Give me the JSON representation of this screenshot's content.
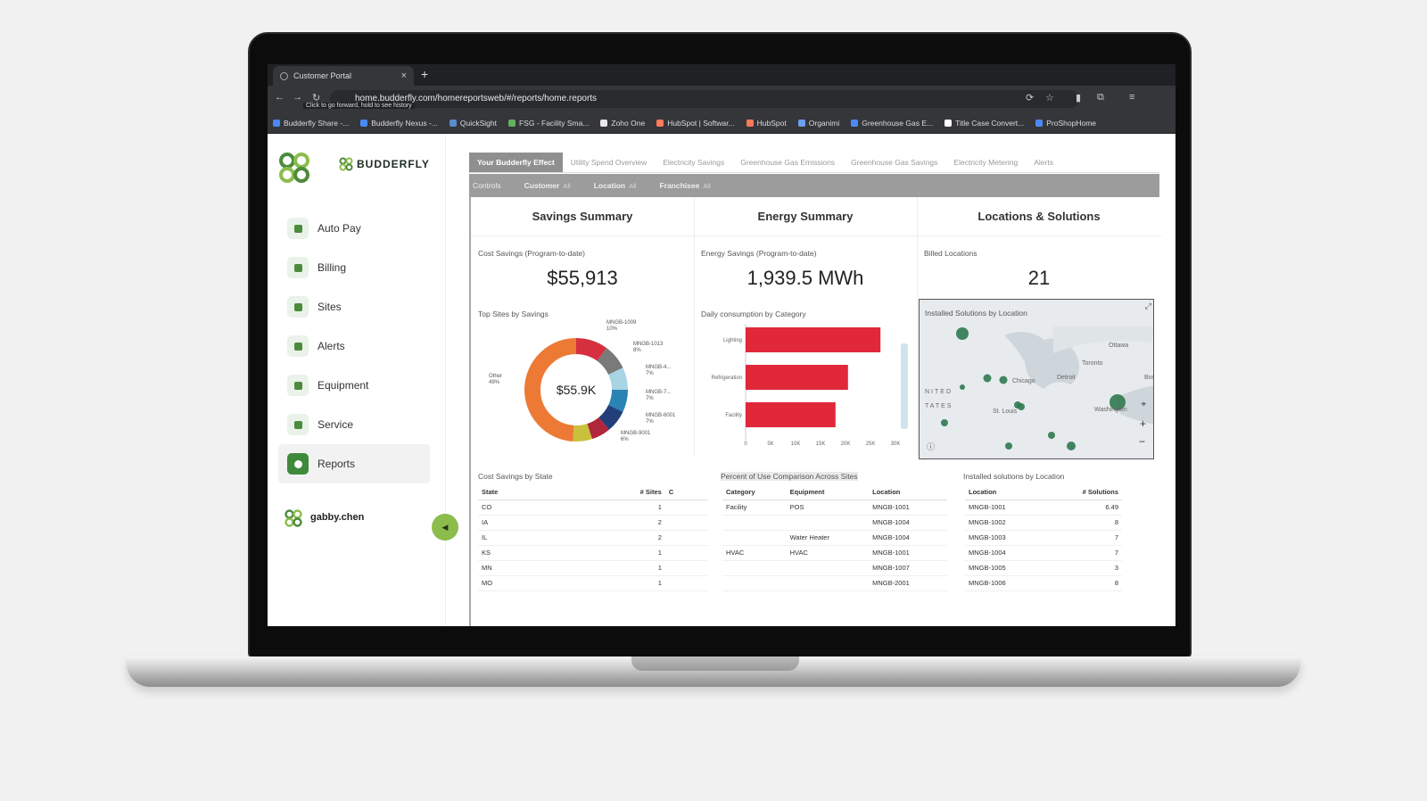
{
  "browser": {
    "tab_title": "Customer Portal",
    "url": "home.budderfly.com/homereportsweb/#/reports/home.reports",
    "url_tooltip": "Click to go forward, hold to see history",
    "bookmarks": [
      "Budderfly Share -...",
      "Budderfly Nexus -...",
      "QuickSight",
      "FSG - Facility Sma...",
      "Zoho One",
      "HubSpot | Softwar...",
      "HubSpot",
      "Organimi",
      "Greenhouse Gas E...",
      "Title Case Convert...",
      "ProShopHome"
    ]
  },
  "brand": {
    "name": "BUDDERFLY",
    "accent": "#3f8a3a"
  },
  "sidebar": {
    "items": [
      {
        "label": "Auto Pay",
        "icon": "card-icon"
      },
      {
        "label": "Billing",
        "icon": "receipt-icon"
      },
      {
        "label": "Sites",
        "icon": "pin-icon"
      },
      {
        "label": "Alerts",
        "icon": "bell-icon"
      },
      {
        "label": "Equipment",
        "icon": "gear-icon"
      },
      {
        "label": "Service",
        "icon": "tools-icon"
      },
      {
        "label": "Reports",
        "icon": "chart-icon",
        "active": true
      }
    ],
    "user": "gabby.chen"
  },
  "report_tabs": [
    "Your Budderfly Effect",
    "Utility Spend Overview",
    "Electricity Savings",
    "Greenhouse Gas Emissions",
    "Greenhouse Gas Savings",
    "Electricity Metering",
    "Alerts"
  ],
  "controls": {
    "label": "Controls",
    "filters": [
      {
        "name": "Customer",
        "value": "All"
      },
      {
        "name": "Location",
        "value": "All"
      },
      {
        "name": "Franchisee",
        "value": "All"
      }
    ]
  },
  "summary": {
    "savings": {
      "heading": "Savings Summary",
      "label": "Cost Savings (Program-to-date)",
      "value": "$55,913"
    },
    "energy": {
      "heading": "Energy Summary",
      "label": "Energy Savings (Program-to-date)",
      "value": "1,939.5 MWh"
    },
    "locations": {
      "heading": "Locations & Solutions",
      "label": "Billed Locations",
      "value": "21"
    }
  },
  "chart_data": [
    {
      "type": "pie",
      "title": "Top Sites by Savings",
      "center_label": "$55.9K",
      "slices": [
        {
          "label": "MNGB-1009",
          "pct_label": "10%",
          "value": 10,
          "color": "#d62f3f"
        },
        {
          "label": "MNGB-1013",
          "pct_label": "8%",
          "value": 8,
          "color": "#7a7a7a"
        },
        {
          "label": "MNGB-4...",
          "pct_label": "7%",
          "value": 7,
          "color": "#a9d4e4"
        },
        {
          "label": "MNGB-7...",
          "pct_label": "7%",
          "value": 7,
          "color": "#2b83b5"
        },
        {
          "label": "MNGB-6001",
          "pct_label": "7%",
          "value": 7,
          "color": "#223f7a"
        },
        {
          "label": "MNGB-9001",
          "pct_label": "6%",
          "value": 6,
          "color": "#b0263a"
        },
        {
          "label": "",
          "pct_label": "",
          "value": 6,
          "color": "#c9c13a"
        },
        {
          "label": "Other",
          "pct_label": "49%",
          "value": 49,
          "color": "#ec7a35"
        }
      ]
    },
    {
      "type": "bar",
      "title": "Daily consumption by Category",
      "orientation": "horizontal",
      "categories": [
        "Lighting",
        "Refrigeration",
        "Facility"
      ],
      "values": [
        27000,
        20500,
        18000
      ],
      "xlim": [
        0,
        30000
      ],
      "ticks": [
        "0",
        "5K",
        "10K",
        "15K",
        "20K",
        "25K",
        "30K"
      ],
      "color": "#e0283a"
    }
  ],
  "map": {
    "title": "Installed Solutions by Location",
    "labels": [
      "Ottawa",
      "Toronto",
      "Chicago",
      "Detroit",
      "Boston",
      "St. Louis",
      "Washington",
      "NITED",
      "TATES"
    ]
  },
  "tables": {
    "state": {
      "title": "Cost Savings by State",
      "headers": [
        "State",
        "# Sites",
        "C"
      ],
      "rows": [
        [
          "CO",
          "1"
        ],
        [
          "IA",
          "2"
        ],
        [
          "IL",
          "2"
        ],
        [
          "KS",
          "1"
        ],
        [
          "MN",
          "1"
        ],
        [
          "MO",
          "1"
        ]
      ]
    },
    "percent": {
      "title": "Percent of Use Comparison Across Sites",
      "headers": [
        "Category",
        "Equipment",
        "Location"
      ],
      "rows": [
        [
          "Facility",
          "POS",
          "MNGB-1001"
        ],
        [
          "",
          "",
          "MNGB-1004"
        ],
        [
          "",
          "Water Heater",
          "MNGB-1004"
        ],
        [
          "HVAC",
          "HVAC",
          "MNGB-1001"
        ],
        [
          "",
          "",
          "MNGB-1007"
        ],
        [
          "",
          "",
          "MNGB-2001"
        ]
      ]
    },
    "solutions": {
      "title": "Installed solutions by Location",
      "headers": [
        "Location",
        "# Solutions"
      ],
      "rows": [
        [
          "MNGB-1001",
          "6.49"
        ],
        [
          "MNGB-1002",
          "8"
        ],
        [
          "MNGB-1003",
          "7"
        ],
        [
          "MNGB-1004",
          "7"
        ],
        [
          "MNGB-1005",
          "3"
        ],
        [
          "MNGB-1006",
          "8"
        ]
      ]
    }
  }
}
